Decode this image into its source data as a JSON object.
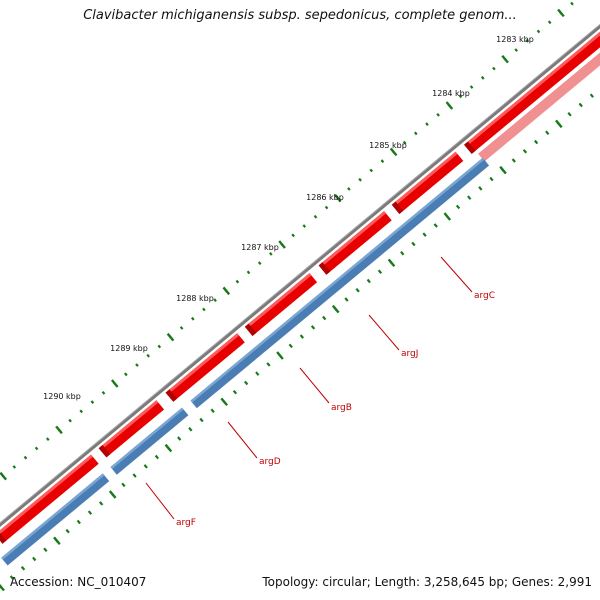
{
  "title": "Clavibacter michiganensis subsp. sepedonicus, complete genom...",
  "footer": {
    "accession": "Accession: NC_010407",
    "stats": "Topology: circular; Length: 3,258,645 bp; Genes: 2,991"
  },
  "colors": {
    "backbone": "#7a7a7a",
    "forward_cds": "#e80000",
    "forward_cds_faded": "#f09090",
    "reverse_cds": "#4a7db4",
    "ticks": "#1a7a1a",
    "label": "#c00000"
  },
  "ruler": [
    {
      "label": "1283 kbp"
    },
    {
      "label": "1284 kbp"
    },
    {
      "label": "1285 kbp"
    },
    {
      "label": "1286 kbp"
    },
    {
      "label": "1287 kbp"
    },
    {
      "label": "1288 kbp"
    },
    {
      "label": "1289 kbp"
    },
    {
      "label": "1290 kbp"
    }
  ],
  "genes": [
    {
      "name": "argC"
    },
    {
      "name": "argJ"
    },
    {
      "name": "argB"
    },
    {
      "name": "argD"
    },
    {
      "name": "argF"
    }
  ]
}
